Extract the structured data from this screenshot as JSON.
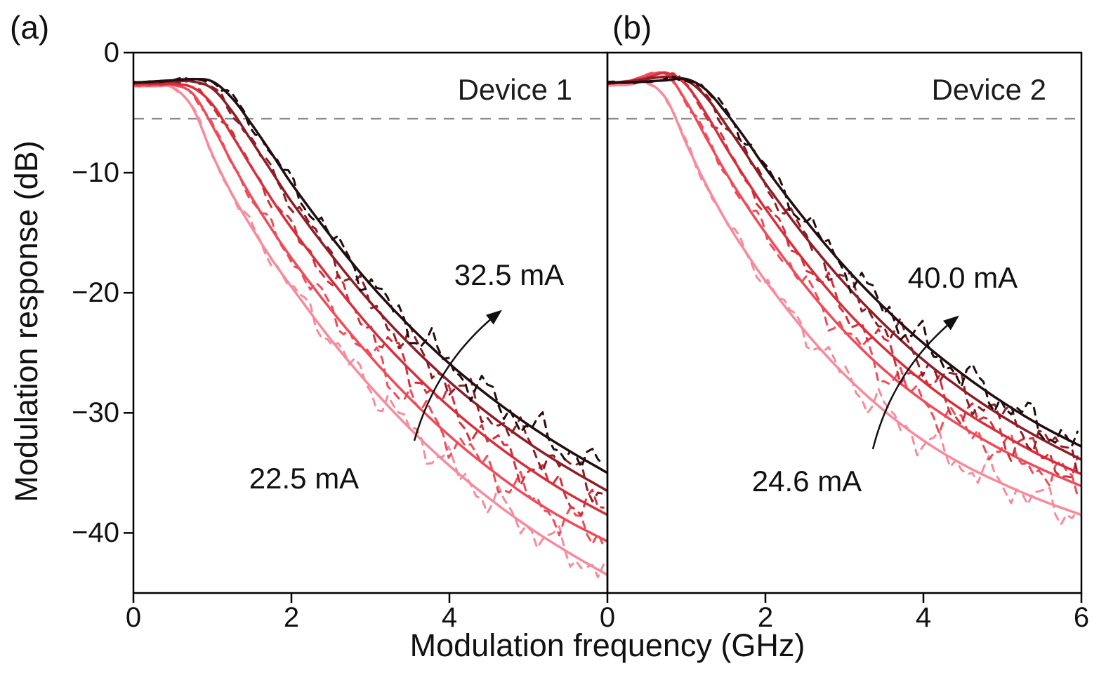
{
  "chart_data": [
    {
      "type": "line",
      "panel_label": "(a)",
      "title": "Device 1",
      "xlabel": "Modulation frequency (GHz)",
      "ylabel": "Modulation response (dB)",
      "xlim": [
        0,
        6
      ],
      "ylim": [
        -45,
        0
      ],
      "xticks": [
        0,
        2,
        4
      ],
      "xtick_labels": [
        "0",
        "2",
        "4"
      ],
      "yticks": [
        0,
        -10,
        -20,
        -30,
        -40
      ],
      "ytick_labels": [
        "0",
        "−10",
        "−20",
        "−30",
        "−40"
      ],
      "grid": false,
      "legend": "none",
      "reference_line": {
        "y": -5.5,
        "style": "dashed",
        "color": "#8c8c8c"
      },
      "series_rendering": "each bias current drawn as a dashed measured curve and a solid fitted curve of the same color",
      "annotations": {
        "high_current": "32.5 mA",
        "low_current": "22.5 mA",
        "arrow": "pointing from low-current toward high-current curves"
      },
      "x": [
        0,
        0.25,
        0.5,
        0.75,
        1,
        1.25,
        1.5,
        1.75,
        2,
        2.5,
        3,
        3.5,
        4,
        4.5,
        5,
        5.5,
        6
      ],
      "series": [
        {
          "name": "22.5 mA",
          "color": "#f78b9b",
          "values": [
            -2.8,
            -2.8,
            -2.9,
            -4.6,
            -8.5,
            -11.8,
            -14.6,
            -17.2,
            -19.5,
            -23.9,
            -27.8,
            -31.3,
            -34.4,
            -37.1,
            -39.5,
            -41.6,
            -43.5
          ]
        },
        {
          "name": "",
          "color": "#ef4b58",
          "values": [
            -2.7,
            -2.7,
            -2.7,
            -3.4,
            -6.1,
            -9.2,
            -12.1,
            -14.7,
            -17.1,
            -21.4,
            -25.3,
            -28.8,
            -31.9,
            -34.6,
            -37.0,
            -39.0,
            -40.7
          ]
        },
        {
          "name": "",
          "color": "#d62f3a",
          "values": [
            -2.6,
            -2.6,
            -2.6,
            -2.9,
            -4.3,
            -6.9,
            -9.6,
            -12.2,
            -14.6,
            -18.9,
            -22.9,
            -26.4,
            -29.5,
            -32.2,
            -34.6,
            -36.7,
            -38.5
          ]
        },
        {
          "name": "",
          "color": "#8e1e26",
          "values": [
            -2.5,
            -2.5,
            -2.4,
            -2.4,
            -3.0,
            -4.9,
            -7.4,
            -9.9,
            -12.4,
            -16.8,
            -20.8,
            -24.3,
            -27.4,
            -30.1,
            -32.5,
            -34.6,
            -36.5
          ]
        },
        {
          "name": "32.5 mA",
          "color": "#220d0f",
          "values": [
            -2.5,
            -2.4,
            -2.3,
            -2.2,
            -2.4,
            -3.8,
            -6.0,
            -8.4,
            -10.9,
            -15.3,
            -19.3,
            -22.8,
            -25.9,
            -28.6,
            -31.0,
            -33.1,
            -35.0
          ]
        }
      ]
    },
    {
      "type": "line",
      "panel_label": "(b)",
      "title": "Device 2",
      "xlabel": "Modulation frequency (GHz)",
      "ylabel": "Modulation response (dB)",
      "xlim": [
        0,
        6
      ],
      "ylim": [
        -45,
        0
      ],
      "xticks": [
        0,
        2,
        4,
        6
      ],
      "xtick_labels": [
        "0",
        "2",
        "4",
        "6"
      ],
      "yticks": [
        0,
        -10,
        -20,
        -30,
        -40
      ],
      "ytick_labels": [
        "0",
        "−10",
        "−20",
        "−30",
        "−40"
      ],
      "grid": false,
      "legend": "none",
      "reference_line": {
        "y": -5.5,
        "style": "dashed",
        "color": "#8c8c8c"
      },
      "series_rendering": "each bias current drawn as a dashed measured curve and a solid fitted curve of the same color",
      "annotations": {
        "high_current": "40.0 mA",
        "low_current": "24.6 mA",
        "arrow": "pointing from low-current toward high-current curves"
      },
      "x": [
        0,
        0.25,
        0.5,
        0.75,
        1,
        1.25,
        1.5,
        1.75,
        2,
        2.5,
        3,
        3.5,
        4,
        4.5,
        5,
        5.5,
        6
      ],
      "series": [
        {
          "name": "24.6 mA",
          "color": "#f78b9b",
          "values": [
            -2.7,
            -2.7,
            -2.5,
            -3.9,
            -7.6,
            -11.0,
            -14.0,
            -16.6,
            -19.0,
            -23.2,
            -26.8,
            -29.8,
            -32.3,
            -34.3,
            -35.9,
            -37.3,
            -38.5
          ]
        },
        {
          "name": "",
          "color": "#ef4b58",
          "values": [
            -2.6,
            -2.4,
            -1.9,
            -1.8,
            -4.1,
            -7.1,
            -10.0,
            -12.6,
            -15.0,
            -19.4,
            -23.2,
            -26.4,
            -29.0,
            -31.2,
            -33.1,
            -34.7,
            -36.1
          ]
        },
        {
          "name": "",
          "color": "#d62f3a",
          "values": [
            -2.6,
            -2.4,
            -2.1,
            -1.7,
            -2.7,
            -5.1,
            -7.9,
            -10.5,
            -13.0,
            -17.4,
            -21.3,
            -24.6,
            -27.4,
            -29.8,
            -31.8,
            -33.6,
            -35.1
          ]
        },
        {
          "name": "",
          "color": "#8e1e26",
          "values": [
            -2.5,
            -2.4,
            -2.2,
            -2.0,
            -2.3,
            -3.7,
            -6.0,
            -8.4,
            -10.9,
            -15.3,
            -19.2,
            -22.6,
            -25.6,
            -28.1,
            -30.3,
            -32.2,
            -33.9
          ]
        },
        {
          "name": "40.0 mA",
          "color": "#220d0f",
          "values": [
            -2.5,
            -2.5,
            -2.4,
            -2.3,
            -2.2,
            -3.1,
            -5.0,
            -7.2,
            -9.6,
            -13.9,
            -17.8,
            -21.2,
            -24.2,
            -26.8,
            -29.1,
            -31.1,
            -32.8
          ]
        }
      ]
    }
  ]
}
